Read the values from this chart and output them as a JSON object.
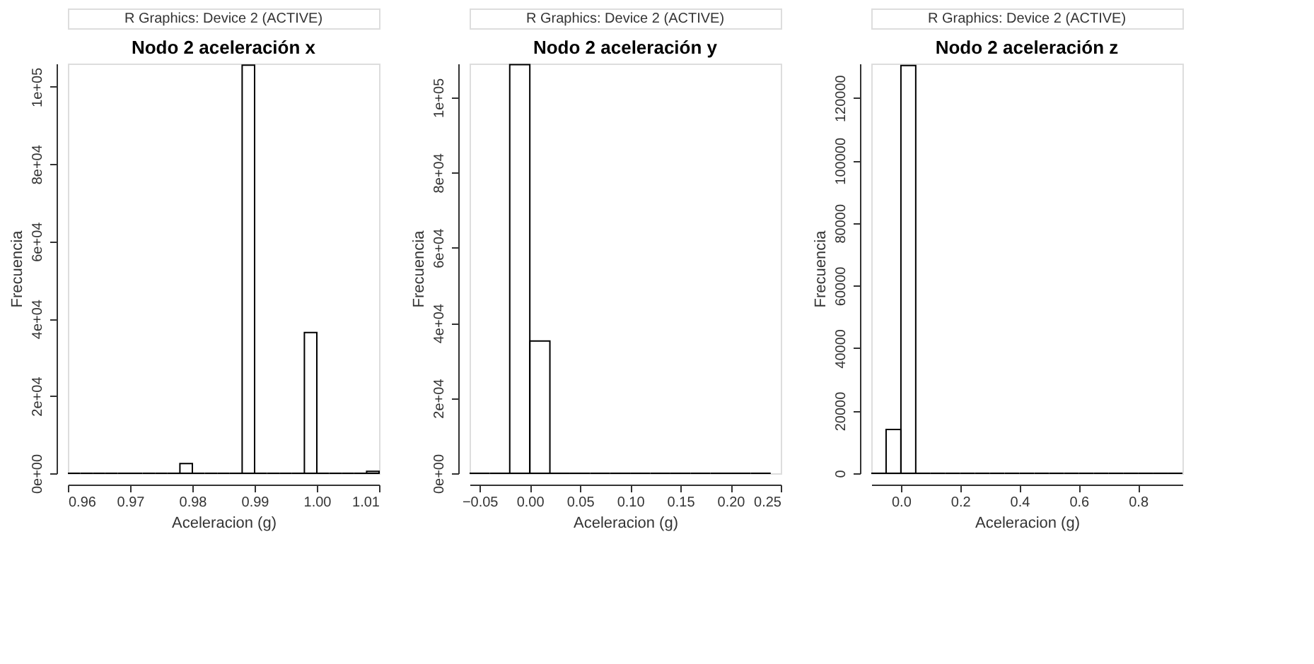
{
  "chart_data": [
    {
      "type": "histogram",
      "title": "Nodo 2 aceleración x",
      "xlabel": "Aceleracion (g)",
      "ylabel": "Frecuencia",
      "annotations": [
        "R Graphics: Device 2 (ACTIVE)"
      ],
      "bins": [
        0.96,
        0.962,
        0.964,
        0.966,
        0.968,
        0.97,
        0.972,
        0.974,
        0.976,
        0.978,
        0.98,
        0.982,
        0.984,
        0.986,
        0.988,
        0.99,
        0.992,
        0.994,
        0.996,
        0.998,
        1.0,
        1.002,
        1.004,
        1.006,
        1.008,
        1.01
      ],
      "values": [
        0,
        0,
        0,
        0,
        0,
        0,
        0,
        0,
        0,
        2500,
        0,
        0,
        0,
        0,
        105600,
        0,
        0,
        0,
        0,
        36400,
        0,
        0,
        0,
        0,
        500
      ],
      "color": "#000000",
      "xlim": [
        0.96,
        1.01
      ],
      "ylim": [
        0,
        106000
      ],
      "xticks": [
        0.96,
        0.97,
        0.98,
        0.99,
        {
          "value": 1.0,
          "label": "1.00"
        },
        1.01
      ],
      "yticks": [
        {
          "value": 0,
          "label": "0e+00"
        },
        {
          "value": 20000,
          "label": "2e+04"
        },
        {
          "value": 40000,
          "label": "4e+04"
        },
        {
          "value": 60000,
          "label": "6e+04"
        },
        {
          "value": 80000,
          "label": "8e+04"
        },
        {
          "value": 100000,
          "label": "1e+05"
        }
      ],
      "grid": false
    },
    {
      "type": "histogram",
      "title": "Nodo 2 aceleración y",
      "xlabel": "Aceleracion (g)",
      "ylabel": "Frecuencia",
      "annotations": [
        "R Graphics: Device 2 (ACTIVE)"
      ],
      "bins": [
        -0.06,
        -0.04,
        -0.02,
        0.0,
        0.02,
        0.04,
        0.06,
        0.08,
        0.1,
        0.12,
        0.14,
        0.16,
        0.18,
        0.2,
        0.22,
        0.24
      ],
      "values": [
        0,
        0,
        108700,
        35200,
        0,
        0,
        0,
        0,
        0,
        0,
        0,
        0,
        0,
        0,
        0
      ],
      "color": "#000000",
      "xlim": [
        -0.06,
        0.25
      ],
      "ylim": [
        0,
        109000
      ],
      "xticks": [
        -0.05,
        {
          "value": 0,
          "label": "0.00"
        },
        0.05,
        {
          "value": 0.1,
          "label": "0.10"
        },
        0.15,
        {
          "value": 0.2,
          "label": "0.20"
        },
        0.25
      ],
      "yticks": [
        {
          "value": 0,
          "label": "0e+00"
        },
        {
          "value": 20000,
          "label": "2e+04"
        },
        {
          "value": 40000,
          "label": "4e+04"
        },
        {
          "value": 60000,
          "label": "6e+04"
        },
        {
          "value": 80000,
          "label": "8e+04"
        },
        {
          "value": 100000,
          "label": "1e+05"
        }
      ],
      "grid": false
    },
    {
      "type": "histogram",
      "title": "Nodo 2 aceleración z",
      "xlabel": "Aceleracion (g)",
      "ylabel": "Frecuencia",
      "annotations": [
        "R Graphics: Device 2 (ACTIVE)"
      ],
      "bins": [
        -0.1,
        -0.05,
        0.0,
        0.05,
        0.1,
        0.15,
        0.2,
        0.25,
        0.3,
        0.35,
        0.4,
        0.45,
        0.5,
        0.55,
        0.6,
        0.65,
        0.7,
        0.75,
        0.8,
        0.85,
        0.9,
        0.95
      ],
      "values": [
        0,
        14000,
        130400,
        0,
        0,
        0,
        0,
        0,
        0,
        0,
        0,
        0,
        0,
        0,
        0,
        0,
        0,
        0,
        0,
        0,
        0
      ],
      "color": "#000000",
      "xlim": [
        -0.1,
        0.95
      ],
      "ylim": [
        0,
        131000
      ],
      "xticks": [
        {
          "value": 0,
          "label": "0.0"
        },
        0.2,
        0.4,
        0.6,
        0.8
      ],
      "yticks": [
        0,
        20000,
        40000,
        60000,
        80000,
        100000,
        120000
      ],
      "grid": false
    }
  ]
}
